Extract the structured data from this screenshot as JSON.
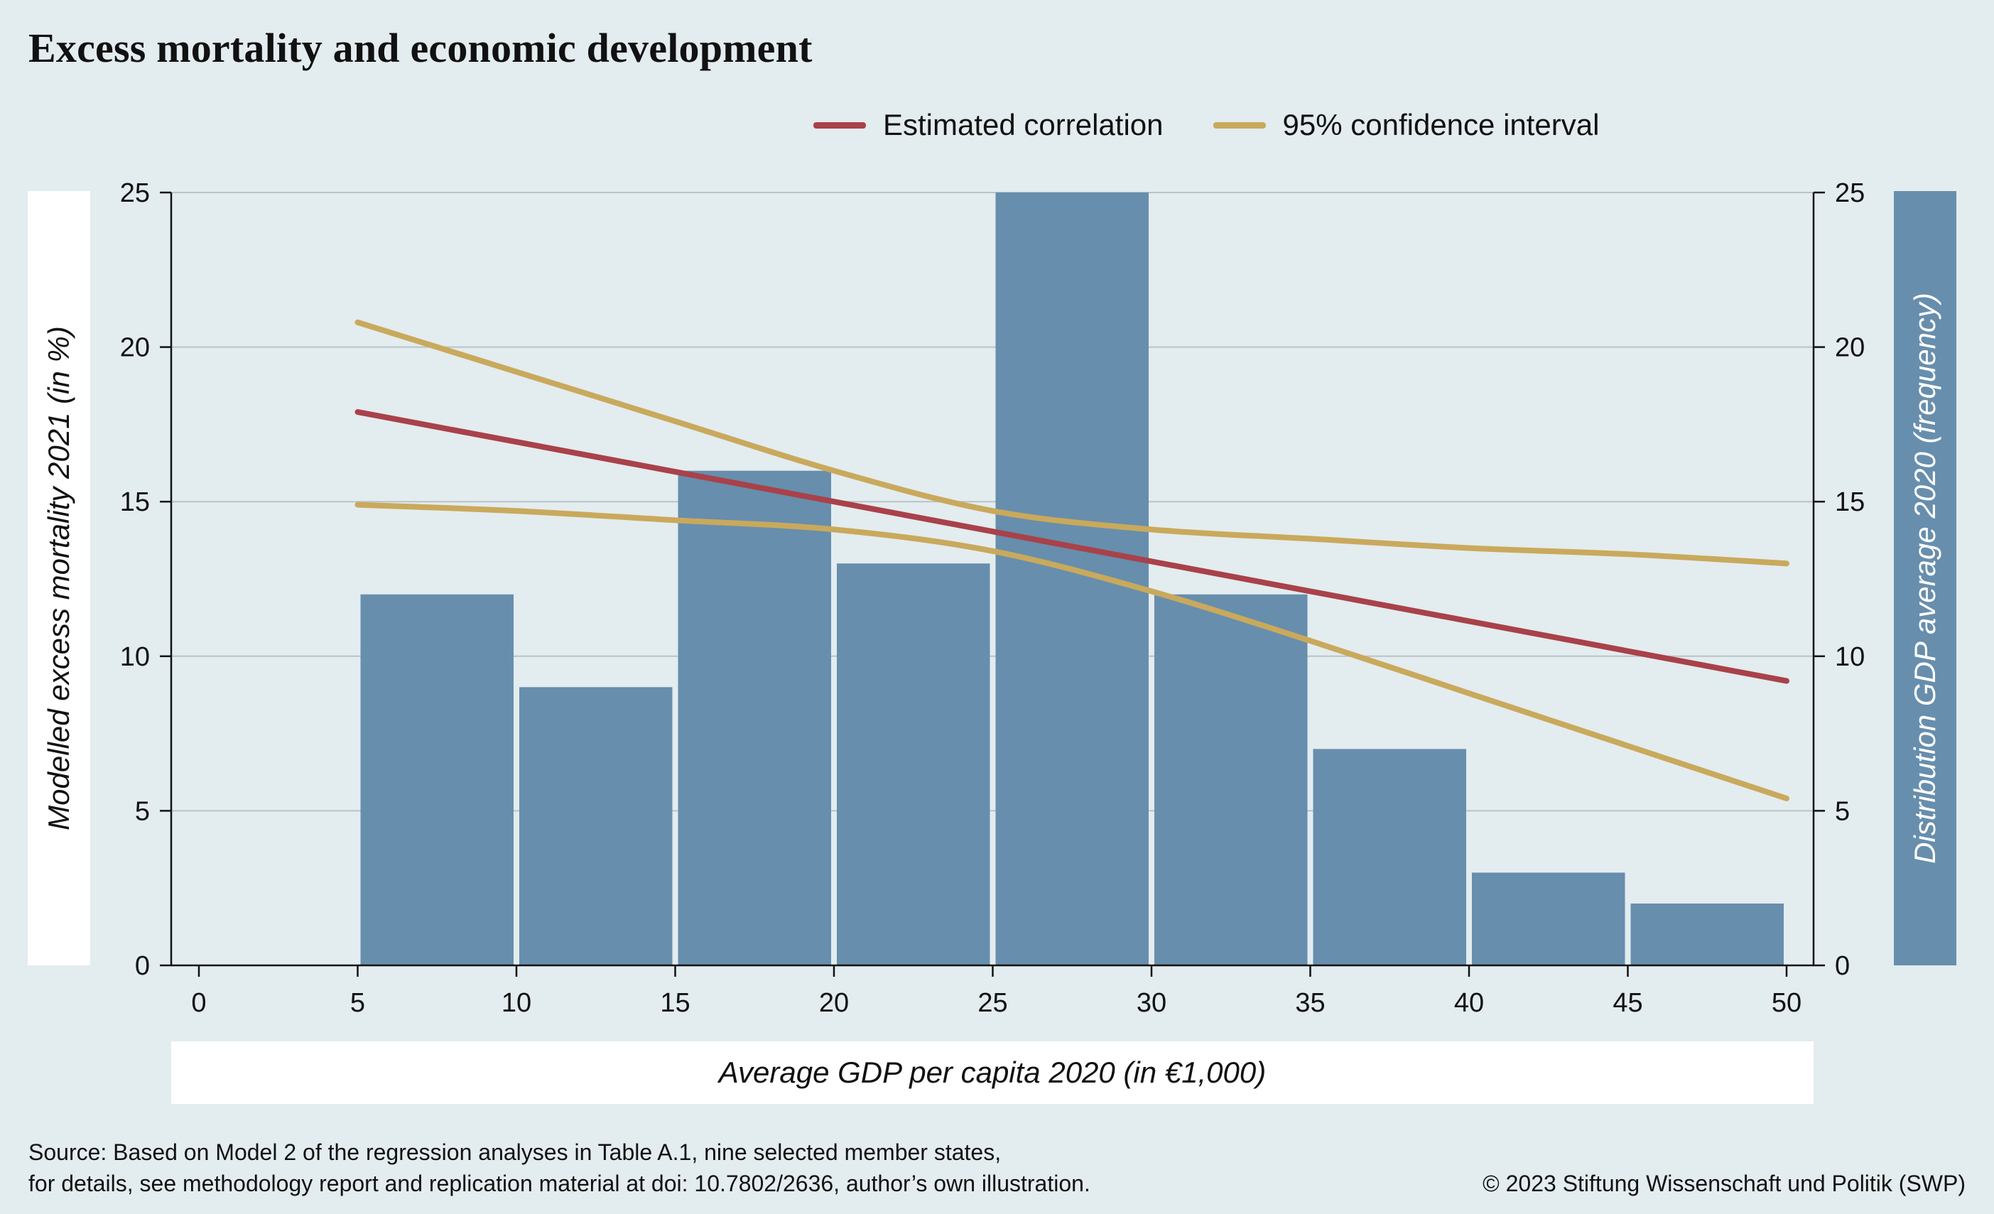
{
  "title": "Excess mortality and economic development",
  "legend": {
    "estimated": "Estimated correlation",
    "ci": "95% confidence interval"
  },
  "colors": {
    "background": "#e3ecef",
    "bars": "#678ead",
    "estimated": "#a9414a",
    "ci": "#c9a95c",
    "grid": "#b9c3c8"
  },
  "chart_data": {
    "type": "bar",
    "title": "Excess mortality and economic development",
    "xlabel": "Average GDP per capita 2020 (in €1,000)",
    "ylabel_left": "Modelled excess mortality 2021 (in %)",
    "ylabel_right": "Distribution GDP average 2020 (frequency)",
    "xlim": [
      0,
      50
    ],
    "ylim": [
      0,
      25
    ],
    "x_ticks": [
      0,
      5,
      10,
      15,
      20,
      25,
      30,
      35,
      40,
      45,
      50
    ],
    "y_ticks": [
      0,
      5,
      10,
      15,
      20,
      25
    ],
    "grid": true,
    "legend_position": "top-right",
    "histogram": {
      "name": "Distribution GDP average 2020 (frequency)",
      "bins": [
        [
          5,
          10
        ],
        [
          10,
          15
        ],
        [
          15,
          20
        ],
        [
          20,
          25
        ],
        [
          25,
          30
        ],
        [
          30,
          35
        ],
        [
          35,
          40
        ],
        [
          40,
          45
        ],
        [
          45,
          50
        ]
      ],
      "values": [
        12,
        9,
        16,
        13,
        25,
        12,
        7,
        3,
        2
      ]
    },
    "series": [
      {
        "name": "Estimated correlation",
        "x": [
          5,
          50
        ],
        "y": [
          17.9,
          9.2
        ]
      },
      {
        "name": "95% confidence interval",
        "x": [
          5,
          10,
          15,
          20,
          25,
          30,
          35,
          40,
          45,
          50
        ],
        "y": [
          20.8,
          19.2,
          17.6,
          16.0,
          14.7,
          14.1,
          13.8,
          13.5,
          13.3,
          13.0
        ]
      },
      {
        "name": "95% confidence interval",
        "x": [
          5,
          10,
          15,
          20,
          25,
          30,
          35,
          40,
          45,
          50
        ],
        "y": [
          14.9,
          14.7,
          14.4,
          14.1,
          13.4,
          12.1,
          10.5,
          8.8,
          7.1,
          5.4
        ]
      }
    ]
  },
  "source": {
    "line1": "Source: Based on Model 2 of the regression analyses in Table A.1, nine selected member states,",
    "line2": "for details, see methodology report and replication material at doi: 10.7802/2636, author’s own illustration."
  },
  "copyright": "© 2023 Stiftung Wissenschaft und Politik (SWP)"
}
